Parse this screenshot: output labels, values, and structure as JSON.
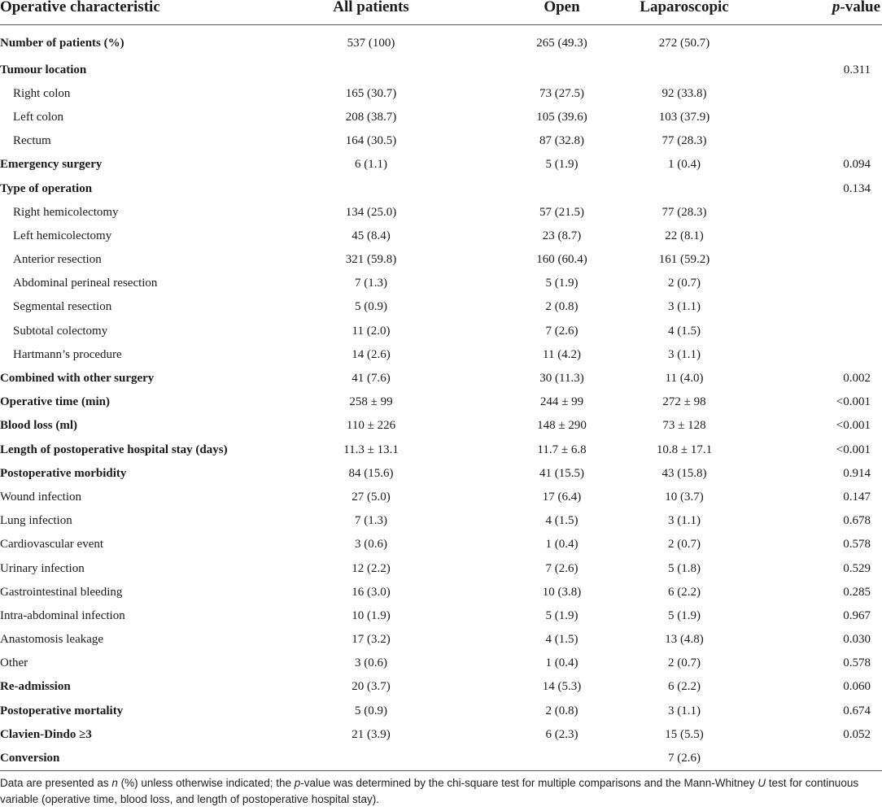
{
  "table": {
    "headers": {
      "characteristic": "Operative characteristic",
      "all": "All patients",
      "open": "Open",
      "lap": "Laparoscopic",
      "p_italic": "p",
      "p_rest": "-value"
    },
    "rows": [
      {
        "label": "Number of patients (%)",
        "all": "537 (100)",
        "open": "265 (49.3)",
        "lap": "272 (50.7)",
        "p": ""
      },
      {
        "label": "Tumour location",
        "all": "",
        "open": "",
        "lap": "",
        "p": "0.311"
      },
      {
        "label": "Right colon",
        "all": "165 (30.7)",
        "open": "73 (27.5)",
        "lap": "92 (33.8)",
        "p": ""
      },
      {
        "label": "Left colon",
        "all": "208 (38.7)",
        "open": "105 (39.6)",
        "lap": "103 (37.9)",
        "p": ""
      },
      {
        "label": "Rectum",
        "all": "164 (30.5)",
        "open": "87 (32.8)",
        "lap": "77 (28.3)",
        "p": ""
      },
      {
        "label": "Emergency surgery",
        "all": "6 (1.1)",
        "open": "5 (1.9)",
        "lap": "1 (0.4)",
        "p": "0.094"
      },
      {
        "label": "Type of operation",
        "all": "",
        "open": "",
        "lap": "",
        "p": "0.134"
      },
      {
        "label": "Right hemicolectomy",
        "all": "134 (25.0)",
        "open": "57 (21.5)",
        "lap": "77 (28.3)",
        "p": ""
      },
      {
        "label": "Left hemicolectomy",
        "all": "45 (8.4)",
        "open": "23 (8.7)",
        "lap": "22 (8.1)",
        "p": ""
      },
      {
        "label": "Anterior resection",
        "all": "321 (59.8)",
        "open": "160 (60.4)",
        "lap": "161 (59.2)",
        "p": ""
      },
      {
        "label": "Abdominal perineal resection",
        "all": "7 (1.3)",
        "open": "5 (1.9)",
        "lap": "2 (0.7)",
        "p": ""
      },
      {
        "label": "Segmental resection",
        "all": "5 (0.9)",
        "open": "2 (0.8)",
        "lap": "3 (1.1)",
        "p": ""
      },
      {
        "label": "Subtotal colectomy",
        "all": "11 (2.0)",
        "open": "7 (2.6)",
        "lap": "4 (1.5)",
        "p": ""
      },
      {
        "label": "Hartmann’s procedure",
        "all": "14 (2.6)",
        "open": "11 (4.2)",
        "lap": "3 (1.1)",
        "p": ""
      },
      {
        "label": "Combined with other surgery",
        "all": "41 (7.6)",
        "open": "30 (11.3)",
        "lap": "11 (4.0)",
        "p": "0.002"
      },
      {
        "label": "Operative time (min)",
        "all": "258 ± 99",
        "open": "244 ± 99",
        "lap": "272 ± 98",
        "p": "<0.001"
      },
      {
        "label": "Blood loss (ml)",
        "all": "110 ± 226",
        "open": "148 ± 290",
        "lap": "73 ± 128",
        "p": "<0.001"
      },
      {
        "label": "Length of postoperative hospital stay (days)",
        "all": "11.3 ± 13.1",
        "open": "11.7 ± 6.8",
        "lap": "10.8 ± 17.1",
        "p": "<0.001"
      },
      {
        "label": "Postoperative morbidity",
        "all": "84 (15.6)",
        "open": "41 (15.5)",
        "lap": "43 (15.8)",
        "p": "0.914"
      },
      {
        "label": "Wound infection",
        "all": "27 (5.0)",
        "open": "17 (6.4)",
        "lap": "10 (3.7)",
        "p": "0.147"
      },
      {
        "label": "Lung infection",
        "all": "7 (1.3)",
        "open": "4 (1.5)",
        "lap": "3 (1.1)",
        "p": "0.678"
      },
      {
        "label": "Cardiovascular event",
        "all": "3 (0.6)",
        "open": "1 (0.4)",
        "lap": "2 (0.7)",
        "p": "0.578"
      },
      {
        "label": "Urinary infection",
        "all": "12 (2.2)",
        "open": "7 (2.6)",
        "lap": "5 (1.8)",
        "p": "0.529"
      },
      {
        "label": "Gastrointestinal bleeding",
        "all": "16 (3.0)",
        "open": "10 (3.8)",
        "lap": "6 (2.2)",
        "p": "0.285"
      },
      {
        "label": "Intra-abdominal infection",
        "all": "10 (1.9)",
        "open": "5 (1.9)",
        "lap": "5 (1.9)",
        "p": "0.967"
      },
      {
        "label": "Anastomosis leakage",
        "all": "17 (3.2)",
        "open": "4 (1.5)",
        "lap": "13 (4.8)",
        "p": "0.030"
      },
      {
        "label": "Other",
        "all": "3 (0.6)",
        "open": "1 (0.4)",
        "lap": "2 (0.7)",
        "p": "0.578"
      },
      {
        "label": "Re-admission",
        "all": "20 (3.7)",
        "open": "14 (5.3)",
        "lap": "6 (2.2)",
        "p": "0.060"
      },
      {
        "label": "Postoperative mortality",
        "all": "5 (0.9)",
        "open": "2 (0.8)",
        "lap": "3 (1.1)",
        "p": "0.674"
      },
      {
        "label": "Clavien-Dindo ≥3",
        "all": "21 (3.9)",
        "open": "6 (2.3)",
        "lap": "15 (5.5)",
        "p": "0.052"
      },
      {
        "label": "Conversion",
        "all": "",
        "open": "",
        "lap": "7 (2.6)",
        "p": ""
      }
    ]
  },
  "footnote": {
    "t1": "Data are presented as ",
    "n": "n",
    "t2": " (%) unless otherwise indicated; the ",
    "p": "p",
    "t3": "-value was determined by the chi-square test for multiple comparisons and the Mann-Whitney ",
    "u": "U",
    "t4": " test for continuous variable (operative time, blood loss, and length of postoperative hospital stay)."
  }
}
